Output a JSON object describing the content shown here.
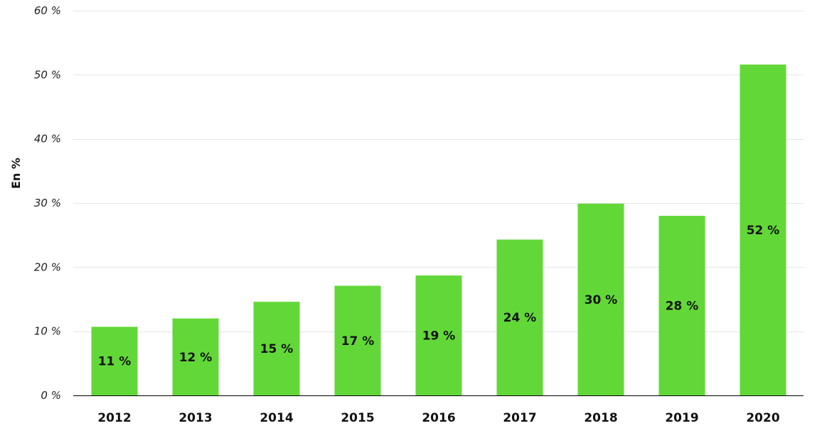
{
  "chart_data": {
    "type": "bar",
    "categories": [
      "2012",
      "2013",
      "2014",
      "2015",
      "2016",
      "2017",
      "2018",
      "2019",
      "2020"
    ],
    "values": [
      10.7,
      12.0,
      14.6,
      17.1,
      18.7,
      24.3,
      29.9,
      28.0,
      51.6
    ],
    "data_labels": [
      "11 %",
      "12 %",
      "15 %",
      "17 %",
      "19 %",
      "24 %",
      "30 %",
      "28 %",
      "52 %"
    ],
    "title": "",
    "xlabel": "",
    "ylabel": "En %",
    "ylim": [
      0,
      60
    ],
    "yticks": [
      0,
      10,
      20,
      30,
      40,
      50,
      60
    ],
    "ytick_labels": [
      "0 %",
      "10 %",
      "20 %",
      "30 %",
      "40 %",
      "50 %",
      "60 %"
    ],
    "grid": true,
    "legend": "none",
    "bar_color": "#62d838"
  }
}
